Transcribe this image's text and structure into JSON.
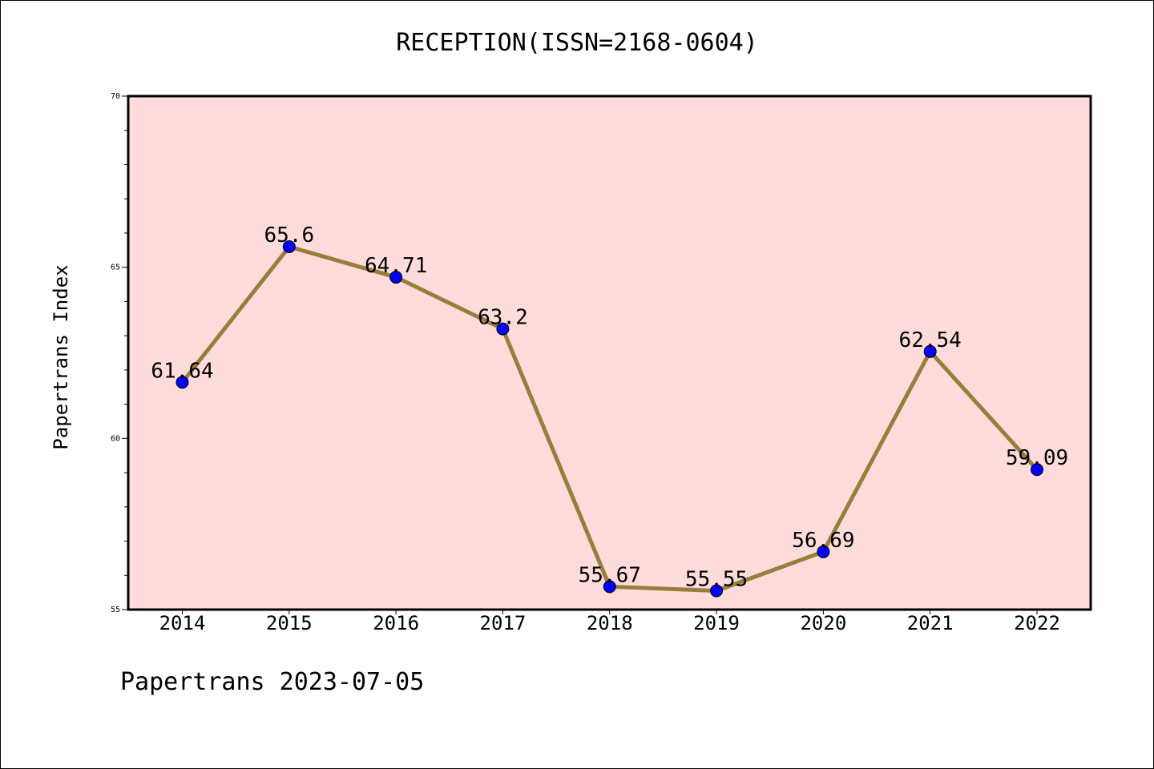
{
  "chart_data": {
    "type": "line",
    "title": "RECEPTION(ISSN=2168-0604)",
    "xlabel": "",
    "ylabel": "Papertrans Index",
    "categories": [
      "2014",
      "2015",
      "2016",
      "2017",
      "2018",
      "2019",
      "2020",
      "2021",
      "2022"
    ],
    "series": [
      {
        "values": [
          61.64,
          65.6,
          64.71,
          63.2,
          55.67,
          55.55,
          56.69,
          62.54,
          59.09
        ],
        "labels": [
          "61.64",
          "65.6",
          "64.71",
          "63.2",
          "55.67",
          "55.55",
          "56.69",
          "62.54",
          "59.09"
        ]
      }
    ],
    "ylim": [
      55,
      70
    ],
    "yticks": [
      "55",
      "60",
      "65",
      "70"
    ],
    "grid": false,
    "line_color": "#9a7d3a",
    "marker_color": "#0000ff",
    "plot_background": "#ffdcdc"
  },
  "footer": "Papertrans 2023-07-05"
}
